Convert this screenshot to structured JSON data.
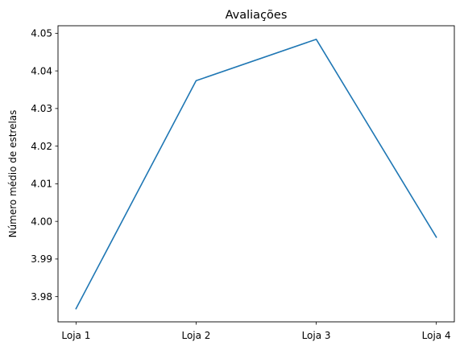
{
  "chart_data": {
    "type": "line",
    "title": "Avaliações",
    "xlabel": "",
    "ylabel": "Número médio de estrelas",
    "categories": [
      "Loja 1",
      "Loja 2",
      "Loja 3",
      "Loja 4"
    ],
    "series": [
      {
        "values": [
          3.9768,
          4.0374,
          4.0484,
          3.9958
        ],
        "color": "#1f77b4"
      }
    ],
    "ylim": [
      3.9733,
      4.052
    ],
    "yticks": [
      3.98,
      3.99,
      4.0,
      4.01,
      4.02,
      4.03,
      4.04,
      4.05
    ],
    "ytick_labels": [
      "3.98",
      "3.99",
      "4.00",
      "4.01",
      "4.02",
      "4.03",
      "4.04",
      "4.05"
    ],
    "grid": false,
    "legend": "none"
  }
}
